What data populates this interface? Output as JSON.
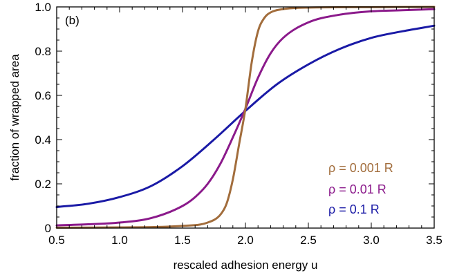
{
  "chart_data": {
    "type": "line",
    "panel_label": "(b)",
    "xlabel": "rescaled adhesion energy u",
    "ylabel": "fraction of wrapped area",
    "xlim": [
      0.5,
      3.5
    ],
    "ylim": [
      0,
      1.0
    ],
    "xticks": [
      0.5,
      1.0,
      1.5,
      2.0,
      2.5,
      3.0,
      3.5
    ],
    "xtick_labels": [
      "0.5",
      "1.0",
      "1.5",
      "2.0",
      "2.5",
      "3.0",
      "3.5"
    ],
    "yticks": [
      0,
      0.2,
      0.4,
      0.6,
      0.8,
      1.0
    ],
    "ytick_labels": [
      "0",
      "0.2",
      "0.4",
      "0.6",
      "0.8",
      "1.0"
    ],
    "grid": false,
    "legend_placement": "bottom-right",
    "series": [
      {
        "name": "ρ = 0.001 R",
        "color": "#a26d3c",
        "x": [
          0.5,
          1.0,
          1.5,
          1.7,
          1.8,
          1.85,
          1.9,
          1.95,
          2.0,
          2.05,
          2.1,
          2.15,
          2.2,
          2.3,
          2.5,
          3.0,
          3.5
        ],
        "y": [
          0.002,
          0.003,
          0.01,
          0.025,
          0.06,
          0.11,
          0.22,
          0.38,
          0.54,
          0.75,
          0.89,
          0.95,
          0.975,
          0.99,
          0.997,
          0.999,
          1.0
        ]
      },
      {
        "name": "ρ = 0.01 R",
        "color": "#8b1a8b",
        "x": [
          0.5,
          0.75,
          1.0,
          1.25,
          1.5,
          1.6,
          1.7,
          1.8,
          1.9,
          2.0,
          2.1,
          2.2,
          2.3,
          2.5,
          2.75,
          3.0,
          3.25,
          3.5
        ],
        "y": [
          0.012,
          0.017,
          0.025,
          0.045,
          0.1,
          0.14,
          0.2,
          0.29,
          0.41,
          0.54,
          0.68,
          0.79,
          0.86,
          0.93,
          0.965,
          0.98,
          0.985,
          0.99
        ]
      },
      {
        "name": "ρ = 0.1 R",
        "color": "#1a1aa6",
        "x": [
          0.5,
          0.75,
          1.0,
          1.25,
          1.5,
          1.75,
          2.0,
          2.25,
          2.5,
          2.75,
          3.0,
          3.25,
          3.5
        ],
        "y": [
          0.095,
          0.11,
          0.14,
          0.19,
          0.28,
          0.4,
          0.53,
          0.65,
          0.74,
          0.81,
          0.86,
          0.89,
          0.915
        ]
      }
    ]
  }
}
